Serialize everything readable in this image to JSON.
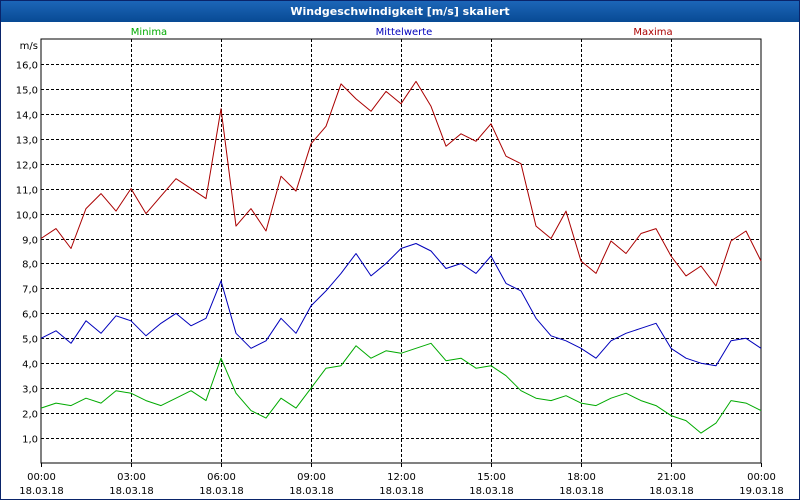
{
  "window": {
    "title": "Windgeschwindigkeit [m/s] skaliert"
  },
  "chart_data": {
    "type": "line",
    "title": "Windgeschwindigkeit [m/s] skaliert",
    "ylabel": "m/s",
    "ylim": [
      0,
      17
    ],
    "yticks": [
      "1,0",
      "2,0",
      "3,0",
      "4,0",
      "5,0",
      "6,0",
      "7,0",
      "8,0",
      "9,0",
      "10,0",
      "11,0",
      "12,0",
      "13,0",
      "14,0",
      "15,0",
      "16,0"
    ],
    "xlim": [
      0,
      24
    ],
    "xticks": [
      {
        "time": "00:00",
        "date": "18.03.18"
      },
      {
        "time": "03:00",
        "date": "18.03.18"
      },
      {
        "time": "06:00",
        "date": "18.03.18"
      },
      {
        "time": "09:00",
        "date": "18.03.18"
      },
      {
        "time": "12:00",
        "date": "18.03.18"
      },
      {
        "time": "15:00",
        "date": "18.03.18"
      },
      {
        "time": "18:00",
        "date": "18.03.18"
      },
      {
        "time": "21:00",
        "date": "18.03.18"
      },
      {
        "time": "00:00",
        "date": "19.03.18"
      }
    ],
    "grid": true,
    "series": [
      {
        "name": "Minima",
        "color": "#00aa00",
        "x": [
          0,
          0.5,
          1,
          1.5,
          2,
          2.5,
          3,
          3.5,
          4,
          4.5,
          5,
          5.5,
          6,
          6.5,
          7,
          7.5,
          8,
          8.5,
          9,
          9.5,
          10,
          10.5,
          11,
          11.5,
          12,
          12.5,
          13,
          13.5,
          14,
          14.5,
          15,
          15.5,
          16,
          16.5,
          17,
          17.5,
          18,
          18.5,
          19,
          19.5,
          20,
          20.5,
          21,
          21.5,
          22,
          22.5,
          23,
          23.5,
          24
        ],
        "values": [
          2.2,
          2.4,
          2.3,
          2.6,
          2.4,
          2.9,
          2.8,
          2.5,
          2.3,
          2.6,
          2.9,
          2.5,
          4.2,
          2.8,
          2.1,
          1.8,
          2.6,
          2.2,
          3.0,
          3.8,
          3.9,
          4.7,
          4.2,
          4.5,
          4.4,
          4.6,
          4.8,
          4.1,
          4.2,
          3.8,
          3.9,
          3.5,
          2.9,
          2.6,
          2.5,
          2.7,
          2.4,
          2.3,
          2.6,
          2.8,
          2.5,
          2.3,
          1.9,
          1.7,
          1.2,
          1.6,
          2.5,
          2.4,
          2.1
        ]
      },
      {
        "name": "Mittelwerte",
        "color": "#0000bb",
        "x": [
          0,
          0.5,
          1,
          1.5,
          2,
          2.5,
          3,
          3.5,
          4,
          4.5,
          5,
          5.5,
          6,
          6.5,
          7,
          7.5,
          8,
          8.5,
          9,
          9.5,
          10,
          10.5,
          11,
          11.5,
          12,
          12.5,
          13,
          13.5,
          14,
          14.5,
          15,
          15.5,
          16,
          16.5,
          17,
          17.5,
          18,
          18.5,
          19,
          19.5,
          20,
          20.5,
          21,
          21.5,
          22,
          22.5,
          23,
          23.5,
          24
        ],
        "values": [
          5.0,
          5.3,
          4.8,
          5.7,
          5.2,
          5.9,
          5.7,
          5.1,
          5.6,
          6.0,
          5.5,
          5.8,
          7.3,
          5.2,
          4.6,
          4.9,
          5.8,
          5.2,
          6.3,
          6.9,
          7.6,
          8.4,
          7.5,
          8.0,
          8.6,
          8.8,
          8.5,
          7.8,
          8.0,
          7.6,
          8.3,
          7.2,
          6.9,
          5.8,
          5.1,
          4.9,
          4.6,
          4.2,
          4.9,
          5.2,
          5.4,
          5.6,
          4.6,
          4.2,
          4.0,
          3.9,
          4.9,
          5.0,
          4.6
        ]
      },
      {
        "name": "Maxima",
        "color": "#aa0000",
        "x": [
          0,
          0.5,
          1,
          1.5,
          2,
          2.5,
          3,
          3.5,
          4,
          4.5,
          5,
          5.5,
          6,
          6.5,
          7,
          7.5,
          8,
          8.5,
          9,
          9.5,
          10,
          10.5,
          11,
          11.5,
          12,
          12.5,
          13,
          13.5,
          14,
          14.5,
          15,
          15.5,
          16,
          16.5,
          17,
          17.5,
          18,
          18.5,
          19,
          19.5,
          20,
          20.5,
          21,
          21.5,
          22,
          22.5,
          23,
          23.5,
          24
        ],
        "values": [
          9.0,
          9.4,
          8.6,
          10.2,
          10.8,
          10.1,
          11.0,
          10.0,
          10.7,
          11.4,
          11.0,
          10.6,
          14.2,
          9.5,
          10.2,
          9.3,
          11.5,
          10.9,
          12.8,
          13.5,
          15.2,
          14.6,
          14.1,
          14.9,
          14.4,
          15.3,
          14.3,
          12.7,
          13.2,
          12.9,
          13.6,
          12.3,
          12.0,
          9.5,
          9.0,
          10.1,
          8.1,
          7.6,
          8.9,
          8.4,
          9.2,
          9.4,
          8.3,
          7.5,
          7.9,
          7.1,
          8.9,
          9.3,
          8.1
        ]
      }
    ]
  }
}
